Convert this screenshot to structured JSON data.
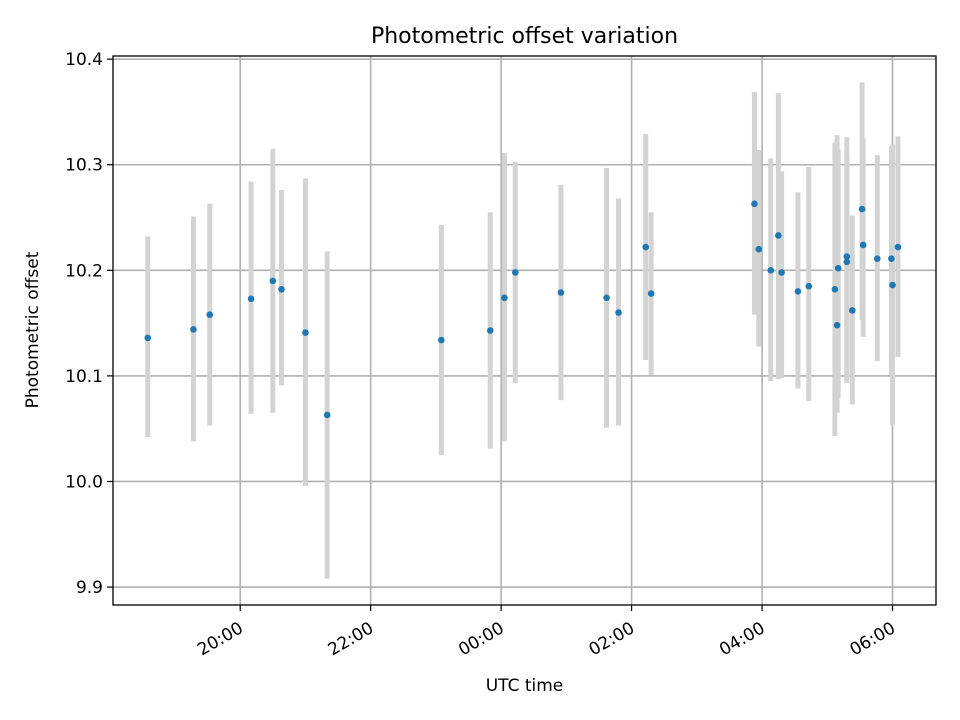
{
  "chart_data": {
    "type": "scatter",
    "title": "Photometric offset variation",
    "xlabel": "UTC time",
    "ylabel": "Photometric offset",
    "grid": true,
    "xlim": [
      "18:03",
      "06:40"
    ],
    "ylim": [
      9.883,
      10.403
    ],
    "x_ticks": [
      "20:00",
      "22:00",
      "00:00",
      "02:00",
      "04:00",
      "06:00"
    ],
    "y_ticks": [
      9.9,
      10.0,
      10.1,
      10.2,
      10.3,
      10.4
    ],
    "y_tick_labels": [
      "9.9",
      "10.0",
      "10.1",
      "10.2",
      "10.3",
      "10.4"
    ],
    "colors": {
      "points": "#1f77b4",
      "errorbars": "#d3d3d3",
      "grid": "#b0b0b0"
    },
    "series": [
      {
        "x": [
          "18:35",
          "19:17",
          "19:32",
          "20:10",
          "20:30",
          "20:38",
          "21:00",
          "21:20",
          "23:05",
          "23:50",
          "00:03",
          "00:13",
          "00:55",
          "01:37",
          "01:48",
          "02:13",
          "02:18",
          "03:53",
          "03:57",
          "04:08",
          "04:15",
          "04:18",
          "04:33",
          "04:43",
          "05:07",
          "05:09",
          "05:10",
          "05:18",
          "05:18",
          "05:23",
          "05:32",
          "05:33",
          "05:46",
          "05:59",
          "06:00",
          "06:05"
        ],
        "y": [
          10.136,
          10.144,
          10.158,
          10.173,
          10.19,
          10.182,
          10.141,
          10.063,
          10.134,
          10.143,
          10.174,
          10.198,
          10.179,
          10.174,
          10.16,
          10.222,
          10.178,
          10.263,
          10.22,
          10.2,
          10.233,
          10.198,
          10.18,
          10.185,
          10.182,
          10.148,
          10.202,
          10.213,
          10.208,
          10.162,
          10.258,
          10.224,
          10.211,
          10.211,
          10.186,
          10.222
        ],
        "yerr_low": [
          10.042,
          10.038,
          10.053,
          10.064,
          10.065,
          10.091,
          9.996,
          9.908,
          10.025,
          10.031,
          10.038,
          10.093,
          10.077,
          10.051,
          10.053,
          10.115,
          10.101,
          10.158,
          10.128,
          10.095,
          10.097,
          10.098,
          10.088,
          10.076,
          10.043,
          10.065,
          10.079,
          10.093,
          10.102,
          10.073,
          10.153,
          10.137,
          10.114,
          10.101,
          10.054,
          10.118
        ],
        "yerr_high": [
          10.232,
          10.251,
          10.263,
          10.284,
          10.315,
          10.276,
          10.287,
          10.218,
          10.243,
          10.255,
          10.311,
          10.303,
          10.281,
          10.297,
          10.268,
          10.329,
          10.255,
          10.369,
          10.314,
          10.306,
          10.368,
          10.294,
          10.274,
          10.298,
          10.321,
          10.328,
          10.315,
          10.326,
          10.308,
          10.252,
          10.378,
          10.325,
          10.309,
          10.317,
          10.319,
          10.327
        ]
      }
    ]
  }
}
